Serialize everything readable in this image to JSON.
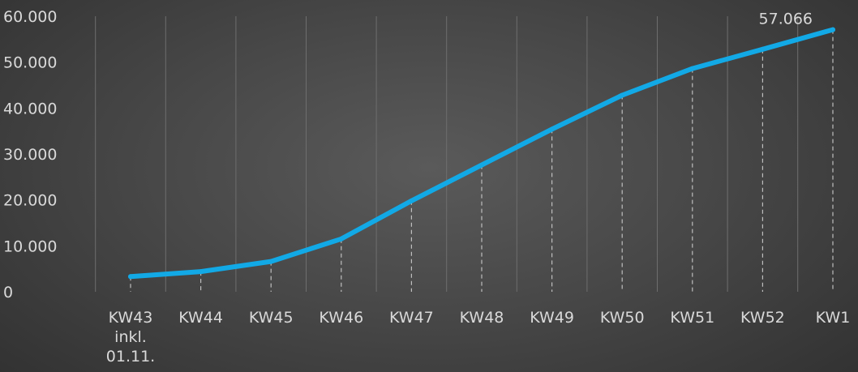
{
  "chart_data": {
    "type": "line",
    "categories": [
      [
        "KW43",
        "inkl.",
        "01.11."
      ],
      [
        "KW44"
      ],
      [
        "KW45"
      ],
      [
        "KW46"
      ],
      [
        "KW47"
      ],
      [
        "KW48"
      ],
      [
        "KW49"
      ],
      [
        "KW50"
      ],
      [
        "KW51"
      ],
      [
        "KW52"
      ],
      [
        "KW1"
      ]
    ],
    "series": [
      {
        "values": [
          3300,
          4400,
          6600,
          11500,
          19800,
          27600,
          35400,
          42800,
          48600,
          52800,
          57066
        ],
        "color": "#12a9e6"
      }
    ],
    "data_labels": [
      {
        "index": 10,
        "text": "57.066"
      }
    ],
    "ylim": [
      0,
      60000
    ],
    "yticks": [
      0,
      10000,
      20000,
      30000,
      40000,
      50000,
      60000
    ],
    "ytick_labels": [
      "0",
      "10.000",
      "20.000",
      "30.000",
      "40.000",
      "50.000",
      "60.000"
    ],
    "grid": "vertical",
    "drop_lines": true,
    "colors": {
      "grid": "#6e6e6e",
      "drop_line": "#bfbfbf",
      "text": "#d9d9d9"
    }
  }
}
